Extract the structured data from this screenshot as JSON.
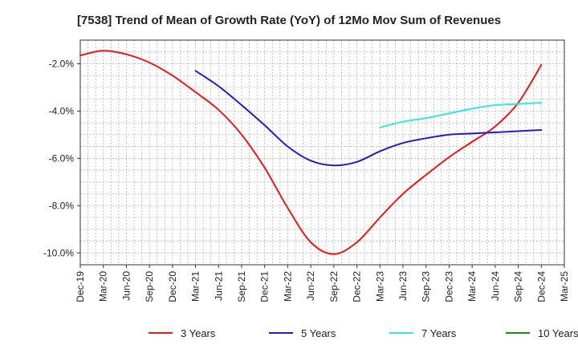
{
  "chart_data": {
    "type": "line",
    "title": "[7538]  Trend of Mean of Growth Rate (YoY) of 12Mo Mov Sum of Revenues",
    "xlabel": "",
    "ylabel": "",
    "ylim": [
      -10.5,
      -1.0
    ],
    "yticks": [
      -2.0,
      -4.0,
      -6.0,
      -8.0,
      -10.0
    ],
    "ytick_labels": [
      "-2.0%",
      "-4.0%",
      "-6.0%",
      "-8.0%",
      "-10.0%"
    ],
    "xtick_labels": [
      "Dec-19",
      "Mar-20",
      "Jun-20",
      "Sep-20",
      "Dec-20",
      "Mar-21",
      "Jun-21",
      "Sep-21",
      "Dec-21",
      "Mar-22",
      "Jun-22",
      "Sep-22",
      "Dec-22",
      "Mar-23",
      "Jun-23",
      "Sep-23",
      "Dec-23",
      "Mar-24",
      "Jun-24",
      "Sep-24",
      "Dec-24",
      "Mar-25"
    ],
    "grid": true,
    "legend_position": "bottom",
    "series": [
      {
        "name": "3 Years",
        "color": "#e31a1c",
        "points": [
          [
            0,
            -1.65
          ],
          [
            1,
            -1.45
          ],
          [
            2,
            -1.6
          ],
          [
            3,
            -1.95
          ],
          [
            4,
            -2.5
          ],
          [
            5,
            -3.2
          ],
          [
            6,
            -3.95
          ],
          [
            7,
            -5.0
          ],
          [
            8,
            -6.4
          ],
          [
            9,
            -8.1
          ],
          [
            10,
            -9.55
          ],
          [
            11,
            -10.05
          ],
          [
            12,
            -9.55
          ],
          [
            13,
            -8.5
          ],
          [
            14,
            -7.5
          ],
          [
            15,
            -6.7
          ],
          [
            16,
            -5.95
          ],
          [
            17,
            -5.3
          ],
          [
            18,
            -4.65
          ],
          [
            19,
            -3.65
          ],
          [
            20,
            -2.05
          ]
        ]
      },
      {
        "name": "5 Years",
        "color": "#1f1fbf",
        "points": [
          [
            5,
            -2.3
          ],
          [
            6,
            -2.95
          ],
          [
            7,
            -3.75
          ],
          [
            8,
            -4.6
          ],
          [
            9,
            -5.5
          ],
          [
            10,
            -6.1
          ],
          [
            11,
            -6.3
          ],
          [
            12,
            -6.15
          ],
          [
            13,
            -5.7
          ],
          [
            14,
            -5.35
          ],
          [
            15,
            -5.15
          ],
          [
            16,
            -5.0
          ],
          [
            17,
            -4.95
          ],
          [
            18,
            -4.9
          ],
          [
            19,
            -4.85
          ],
          [
            20,
            -4.8
          ]
        ]
      },
      {
        "name": "7 Years",
        "color": "#33e5e5",
        "points": [
          [
            13,
            -4.7
          ],
          [
            14,
            -4.45
          ],
          [
            15,
            -4.3
          ],
          [
            16,
            -4.1
          ],
          [
            17,
            -3.9
          ],
          [
            18,
            -3.75
          ],
          [
            19,
            -3.7
          ],
          [
            20,
            -3.65
          ]
        ]
      },
      {
        "name": "10 Years",
        "color": "#1a8a1a",
        "points": []
      }
    ]
  }
}
